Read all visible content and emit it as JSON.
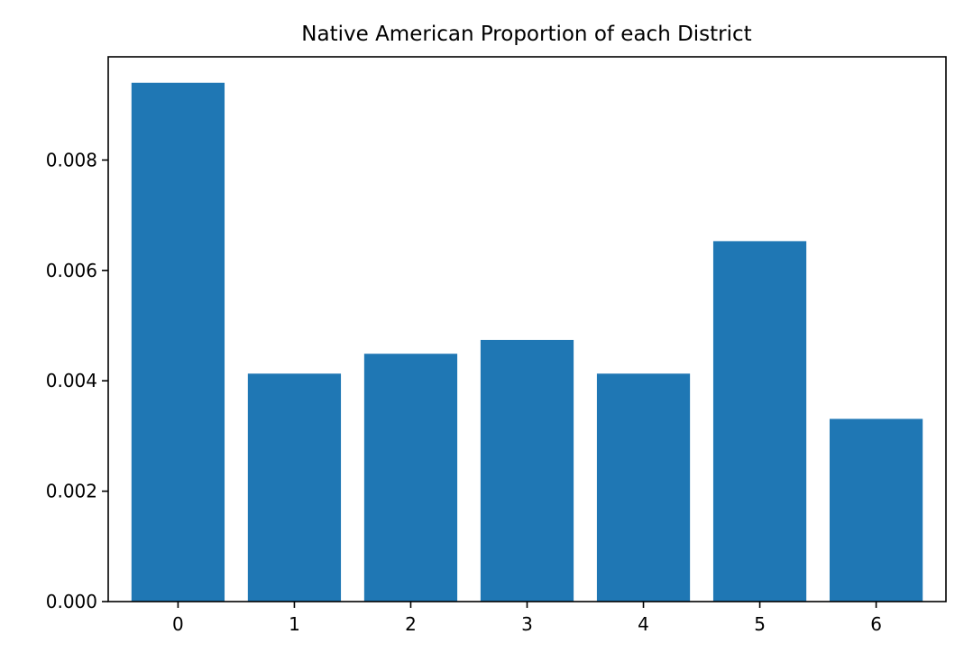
{
  "chart_data": {
    "type": "bar",
    "title": "Native American Proportion of each District",
    "xlabel": "",
    "ylabel": "",
    "categories": [
      "0",
      "1",
      "2",
      "3",
      "4",
      "5",
      "6"
    ],
    "values": [
      0.0094,
      0.00413,
      0.00449,
      0.00474,
      0.00413,
      0.00653,
      0.00331
    ],
    "ylim": [
      0,
      0.00987
    ],
    "yticks": [
      0.0,
      0.002,
      0.004,
      0.006,
      0.008
    ],
    "ytick_labels": [
      "0.000",
      "0.002",
      "0.004",
      "0.006",
      "0.008"
    ],
    "bar_color": "#1f77b4",
    "grid": false,
    "legend": "none"
  }
}
